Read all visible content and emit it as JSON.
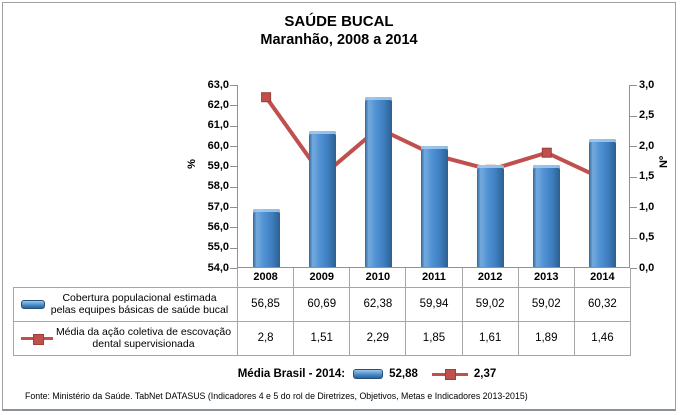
{
  "title": {
    "line1": "SAÚDE BUCAL",
    "line2": "Maranhão, 2008 a 2014"
  },
  "chart_data": {
    "type": "combo-bar-line",
    "categories": [
      "2008",
      "2009",
      "2010",
      "2011",
      "2012",
      "2013",
      "2014"
    ],
    "series": [
      {
        "name": "Cobertura populacional estimada pelas equipes básicas de saúde bucal",
        "type": "bar",
        "axis": "left",
        "unit": "%",
        "values": [
          56.85,
          60.69,
          62.38,
          59.94,
          59.02,
          59.02,
          60.32
        ]
      },
      {
        "name": "Média da ação coletiva de escovação dental supervisionada",
        "type": "line",
        "axis": "right",
        "unit": "Nº",
        "values": [
          2.8,
          1.51,
          2.29,
          1.85,
          1.61,
          1.89,
          1.46
        ]
      }
    ],
    "left_axis": {
      "label": "%",
      "min": 54,
      "max": 63,
      "step": 1,
      "ticks": [
        "63,0",
        "62,0",
        "61,0",
        "60,0",
        "59,0",
        "58,0",
        "57,0",
        "56,0",
        "55,0",
        "54,0"
      ]
    },
    "right_axis": {
      "label": "Nº",
      "min": 0,
      "max": 3,
      "step": 0.5,
      "ticks": [
        "3,0",
        "2,5",
        "2,0",
        "1,5",
        "1,0",
        "0,5",
        "0,0"
      ]
    },
    "grid": false,
    "legend_position": "data-table-left"
  },
  "table": {
    "years": [
      "2008",
      "2009",
      "2010",
      "2011",
      "2012",
      "2013",
      "2014"
    ],
    "rows": [
      {
        "icon": "bar-legend",
        "label_line1": "Cobertura populacional estimada",
        "label_line2": "pelas equipes básicas de saúde bucal",
        "values": [
          "56,85",
          "60,69",
          "62,38",
          "59,94",
          "59,02",
          "59,02",
          "60,32"
        ]
      },
      {
        "icon": "line-legend",
        "label_line1": "Média da ação coletiva de escovação",
        "label_line2": "dental supervisionada",
        "values": [
          "2,8",
          "1,51",
          "2,29",
          "1,85",
          "1,61",
          "1,89",
          "1,46"
        ]
      }
    ]
  },
  "media_brasil": {
    "label": "Média Brasil - 2014:",
    "bar_value": "52,88",
    "line_value": "2,37"
  },
  "fonte": "Fonte: Ministério da Saúde. TabNet DATASUS (Indicadores 4 e 5 do rol de Diretrizes, Objetivos, Metas e Indicadores 2013-2015)",
  "colors": {
    "bar_main": "#3f7fc1",
    "bar_dark": "#2d6294",
    "bar_light": "#79b0e2",
    "line": "#c0504d",
    "line_marker_border": "#9e3d3a",
    "axis": "#909090",
    "table_border": "#a6a6a6"
  }
}
